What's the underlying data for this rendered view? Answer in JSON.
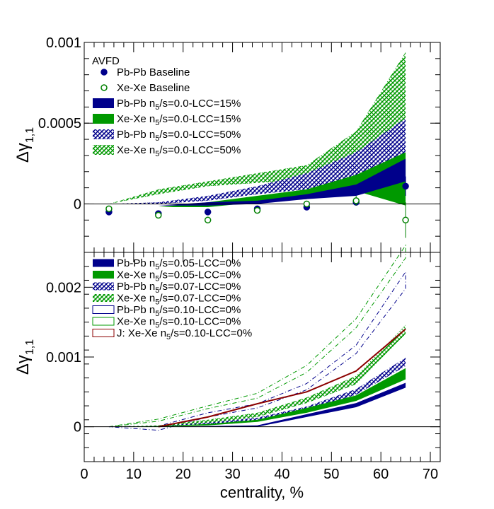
{
  "chart_data": [
    {
      "type": "area",
      "panel": "top",
      "xlabel": "centrality, %",
      "ylabel_main": "Δγ",
      "ylabel_sub": "1,1",
      "xlim": [
        0,
        72
      ],
      "ylim": [
        -0.0003,
        0.001
      ],
      "x_ticks": [
        "0",
        "10",
        "20",
        "30",
        "40",
        "50",
        "60",
        "70"
      ],
      "y_ticks": [
        {
          "value": 0,
          "label": "0"
        },
        {
          "value": 0.0005,
          "label": "0.0005"
        },
        {
          "value": 0.001,
          "label": "0.001"
        }
      ],
      "legend_title": "AVFD",
      "legend": [
        {
          "prefix": "Pb-Pb Baseline",
          "style": "dot-filled",
          "color": "#00008b"
        },
        {
          "prefix": "Xe-Xe Baseline",
          "style": "dot-open",
          "color": "#008000"
        },
        {
          "prefix": "Pb-Pb n",
          "sub": "5",
          "suffix": "/s=0.0-LCC=15%",
          "style": "solid",
          "color": "#00008b"
        },
        {
          "prefix": "Xe-Xe n",
          "sub": "5",
          "suffix": "/s=0.0-LCC=15%",
          "style": "solid",
          "color": "#009900"
        },
        {
          "prefix": "Pb-Pb n",
          "sub": "5",
          "suffix": "/s=0.0-LCC=50%",
          "style": "hatch",
          "color": "#00008b"
        },
        {
          "prefix": "Xe-Xe n",
          "sub": "5",
          "suffix": "/s=0.0-LCC=50%",
          "style": "hatch",
          "color": "#009900"
        }
      ],
      "points": [
        {
          "name": "Pb-Pb Baseline",
          "color": "#00008b",
          "open": false,
          "x": [
            5,
            15,
            25,
            35,
            45,
            55,
            65
          ],
          "y": [
            -5e-05,
            -6e-05,
            -5e-05,
            -3e-05,
            -2e-05,
            1e-05,
            0.00011
          ],
          "err": [
            1e-05,
            1e-05,
            1e-05,
            1e-05,
            2e-05,
            2e-05,
            6e-05
          ]
        },
        {
          "name": "Xe-Xe Baseline",
          "color": "#008000",
          "open": false,
          "x": [
            5,
            15,
            25,
            35,
            45,
            55,
            65
          ],
          "y": [
            -3e-05,
            -7e-05,
            -0.0001,
            -4e-05,
            0.0,
            2e-05,
            -0.0001
          ],
          "err": [
            1e-05,
            1e-05,
            2e-05,
            1e-05,
            2e-05,
            3e-05,
            0.00011
          ]
        }
      ],
      "bands": [
        {
          "name": "Xe-Xe n5/s=0.0-LCC=50%",
          "style": "hatch",
          "color": "#009900",
          "x": [
            5,
            15,
            25,
            35,
            45,
            55,
            65
          ],
          "lo": [
            0.0,
            6e-05,
            0.00011,
            0.00013,
            0.00015,
            0.0002,
            0.00035
          ],
          "hi": [
            0.0,
            9e-05,
            0.00014,
            0.00019,
            0.00024,
            0.00045,
            0.00094
          ]
        },
        {
          "name": "Pb-Pb n5/s=0.0-LCC=50%",
          "style": "hatch",
          "color": "#00008b",
          "x": [
            5,
            15,
            25,
            35,
            45,
            55,
            65
          ],
          "lo": [
            0.0,
            0.0,
            2e-05,
            6e-05,
            9e-05,
            0.00016,
            0.00031
          ],
          "hi": [
            0.0,
            1e-05,
            5e-05,
            0.00011,
            0.00019,
            0.00032,
            0.00053
          ]
        },
        {
          "name": "Xe-Xe n5/s=0.0-LCC=15%",
          "style": "solid",
          "color": "#009900",
          "x": [
            5,
            15,
            25,
            35,
            45,
            55,
            65
          ],
          "lo": [
            0.0,
            -2e-05,
            -2e-05,
            1e-05,
            3e-05,
            8e-05,
            -1e-05
          ],
          "hi": [
            0.0,
            -2e-05,
            1e-05,
            5e-05,
            9e-05,
            0.00018,
            0.00032
          ]
        },
        {
          "name": "Pb-Pb n5/s=0.0-LCC=15%",
          "style": "solid",
          "color": "#00008b",
          "x": [
            5,
            15,
            25,
            35,
            45,
            55,
            65
          ],
          "lo": [
            0.0,
            -1e-05,
            -1e-05,
            0.0,
            3e-05,
            5e-05,
            0.00014
          ],
          "hi": [
            0.0,
            -1e-05,
            1e-05,
            2e-05,
            6e-05,
            0.00012,
            0.00028
          ]
        }
      ]
    },
    {
      "type": "area",
      "panel": "bottom",
      "xlabel": "centrality, %",
      "ylabel_main": "Δγ",
      "ylabel_sub": "1,1",
      "xlim": [
        0,
        72
      ],
      "ylim": [
        -0.0005,
        0.0025
      ],
      "x_ticks": [
        "0",
        "10",
        "20",
        "30",
        "40",
        "50",
        "60",
        "70"
      ],
      "y_ticks": [
        {
          "value": 0,
          "label": "0"
        },
        {
          "value": 0.001,
          "label": "0.001"
        },
        {
          "value": 0.002,
          "label": "0.002"
        }
      ],
      "legend": [
        {
          "prefix": "Pb-Pb n",
          "sub": "5",
          "suffix": "/s=0.05-LCC=0%",
          "style": "solid",
          "color": "#00008b"
        },
        {
          "prefix": "Xe-Xe n",
          "sub": "5",
          "suffix": "/s=0.05-LCC=0%",
          "style": "solid",
          "color": "#009900"
        },
        {
          "prefix": "Pb-Pb n",
          "sub": "5",
          "suffix": "/s=0.07-LCC=0%",
          "style": "hatch",
          "color": "#00008b"
        },
        {
          "prefix": "Xe-Xe n",
          "sub": "5",
          "suffix": "/s=0.07-LCC=0%",
          "style": "hatch",
          "color": "#009900"
        },
        {
          "prefix": "Pb-Pb n",
          "sub": "5",
          "suffix": "/s=0.10-LCC=0%",
          "style": "open",
          "color": "#00008b"
        },
        {
          "prefix": "Xe-Xe n",
          "sub": "5",
          "suffix": "/s=0.10-LCC=0%",
          "style": "open",
          "color": "#009900"
        },
        {
          "prefix": "J: Xe-Xe n",
          "sub": "5",
          "suffix": "/s=0.10-LCC=0%",
          "style": "open",
          "color": "#8b0000"
        }
      ],
      "bands": [
        {
          "name": "Xe-Xe n5/s=0.10-LCC=0%",
          "style": "open",
          "color": "#009900",
          "x": [
            5,
            15,
            25,
            35,
            45,
            55,
            65
          ],
          "lo": [
            0.0,
            8e-05,
            0.00026,
            0.00041,
            0.00078,
            0.00142,
            0.00242
          ],
          "hi": [
            0.0,
            0.00011,
            0.0003,
            0.00048,
            0.00088,
            0.00155,
            0.0026
          ]
        },
        {
          "name": "Pb-Pb n5/s=0.10-LCC=0%",
          "style": "open",
          "color": "#00008b",
          "x": [
            5,
            15,
            25,
            35,
            45,
            55,
            65
          ],
          "lo": [
            0.0,
            -5e-05,
            0.00014,
            0.00027,
            0.00053,
            0.00105,
            0.00198
          ],
          "hi": [
            0.0,
            1e-05,
            0.0002,
            0.00033,
            0.00062,
            0.00117,
            0.00222
          ]
        },
        {
          "name": "Xe-Xe n5/s=0.07-LCC=0%",
          "style": "hatch",
          "color": "#009900",
          "x": [
            5,
            15,
            25,
            35,
            45,
            55,
            65
          ],
          "lo": [
            0.0,
            0.0,
            5e-05,
            0.00014,
            0.00034,
            0.00061,
            0.00133
          ],
          "hi": [
            0.0,
            2e-05,
            0.0001,
            0.0002,
            0.00042,
            0.00073,
            0.00146
          ]
        },
        {
          "name": "Pb-Pb n5/s=0.07-LCC=0%",
          "style": "hatch",
          "color": "#00008b",
          "x": [
            5,
            15,
            25,
            35,
            45,
            55,
            65
          ],
          "lo": [
            0.0,
            0.0,
            3e-05,
            9e-05,
            0.00023,
            0.00046,
            0.00087
          ],
          "hi": [
            0.0,
            1e-05,
            6e-05,
            0.00013,
            0.00029,
            0.00054,
            0.00099
          ]
        },
        {
          "name": "Xe-Xe n5/s=0.05-LCC=0%",
          "style": "solid",
          "color": "#009900",
          "x": [
            5,
            15,
            25,
            35,
            45,
            55,
            65
          ],
          "lo": [
            0.0,
            0.0,
            2e-05,
            7e-05,
            0.0002,
            0.00037,
            0.00068
          ],
          "hi": [
            0.0,
            1e-05,
            4e-05,
            0.0001,
            0.00027,
            0.00045,
            0.00084
          ]
        },
        {
          "name": "Pb-Pb n5/s=0.05-LCC=0%",
          "style": "solid",
          "color": "#00008b",
          "x": [
            5,
            15,
            25,
            35,
            45,
            55,
            65
          ],
          "lo": [
            0.0,
            0.0,
            0.0,
            0.0,
            0.00014,
            0.00028,
            0.00056
          ],
          "hi": [
            0.0,
            0.0,
            1e-05,
            2e-05,
            0.00018,
            0.00034,
            0.00063
          ]
        }
      ],
      "lines": [
        {
          "name": "J: Xe-Xe n5/s=0.10-LCC=0%",
          "color": "#8b0000",
          "x": [
            15,
            25,
            35,
            45,
            55,
            65
          ],
          "y": [
            0.0,
            0.00014,
            0.00033,
            0.0005,
            0.0008,
            0.0014
          ]
        }
      ]
    }
  ]
}
